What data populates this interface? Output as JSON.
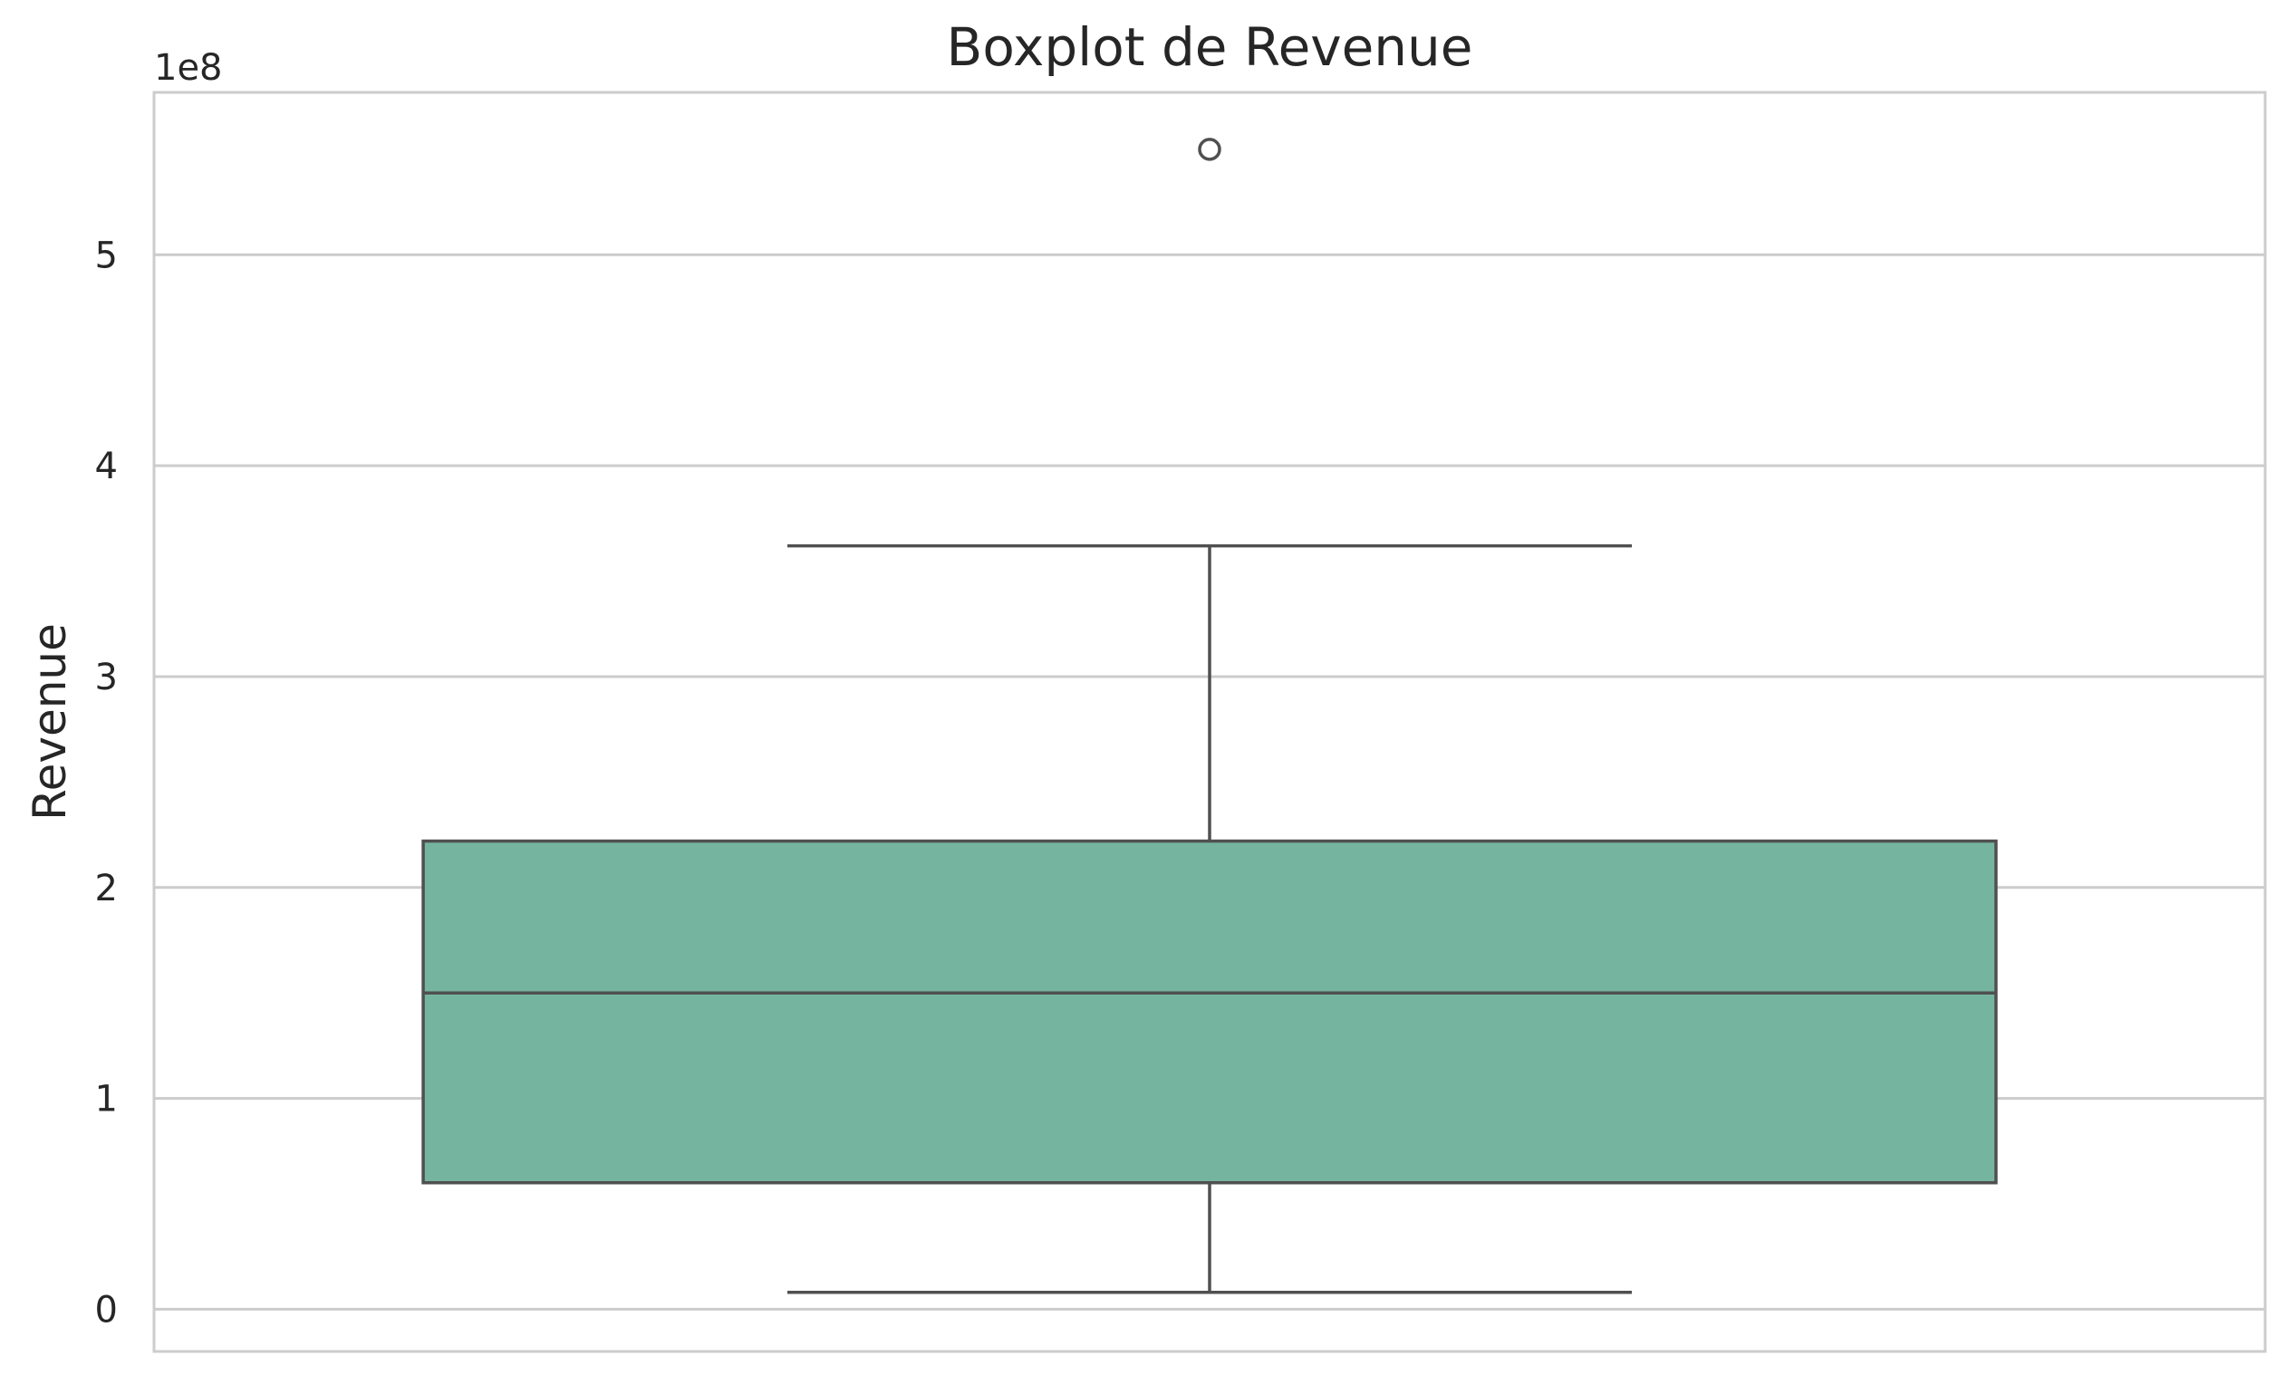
{
  "chart_data": {
    "type": "boxplot",
    "title": "Boxplot de Revenue",
    "xlabel": "",
    "ylabel": "Revenue",
    "y_scale_label": "1e8",
    "y_scale": 100000000,
    "ylim": [
      -20000000,
      577000000
    ],
    "yticks": [
      0,
      100000000,
      200000000,
      300000000,
      400000000,
      500000000
    ],
    "ytick_labels": [
      "0",
      "1",
      "2",
      "3",
      "4",
      "5"
    ],
    "grid": true,
    "box": {
      "whisker_low": 8000000,
      "q1": 60000000,
      "median": 150000000,
      "q3": 222000000,
      "whisker_high": 362000000,
      "outliers": [
        550000000
      ]
    },
    "colors": {
      "box_fill": "#75b5a0",
      "line": "#505050",
      "grid": "#cccccc",
      "frame": "#cccccc"
    }
  }
}
